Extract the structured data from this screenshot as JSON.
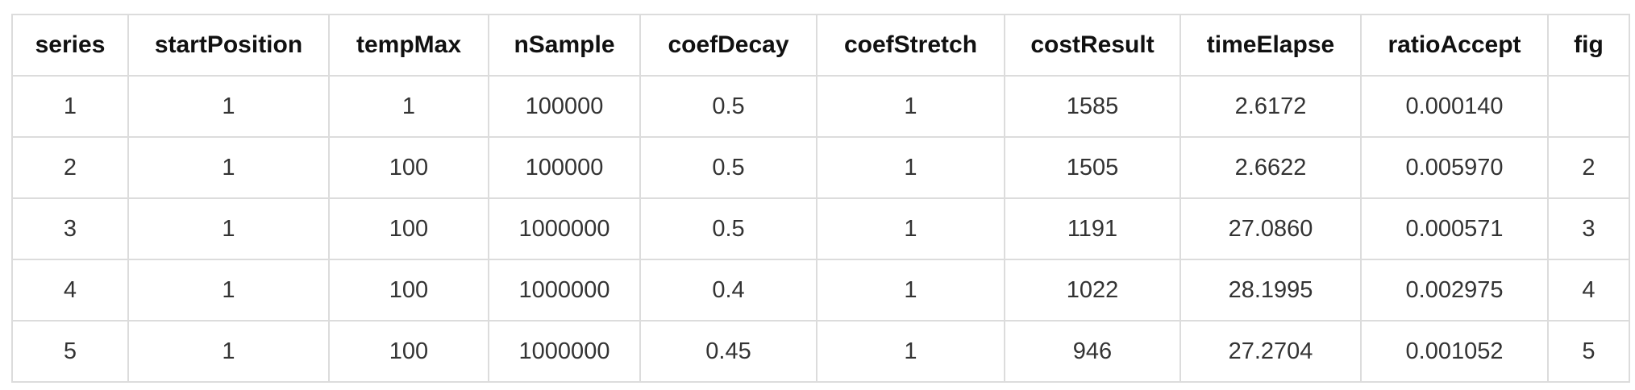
{
  "table": {
    "columns": [
      "series",
      "startPosition",
      "tempMax",
      "nSample",
      "coefDecay",
      "coefStretch",
      "costResult",
      "timeElapse",
      "ratioAccept",
      "fig"
    ],
    "rows": [
      [
        "1",
        "1",
        "1",
        "100000",
        "0.5",
        "1",
        "1585",
        "2.6172",
        "0.000140",
        ""
      ],
      [
        "2",
        "1",
        "100",
        "100000",
        "0.5",
        "1",
        "1505",
        "2.6622",
        "0.005970",
        "2"
      ],
      [
        "3",
        "1",
        "100",
        "1000000",
        "0.5",
        "1",
        "1191",
        "27.0860",
        "0.000571",
        "3"
      ],
      [
        "4",
        "1",
        "100",
        "1000000",
        "0.4",
        "1",
        "1022",
        "28.1995",
        "0.002975",
        "4"
      ],
      [
        "5",
        "1",
        "100",
        "1000000",
        "0.45",
        "1",
        "946",
        "27.2704",
        "0.001052",
        "5"
      ]
    ]
  }
}
